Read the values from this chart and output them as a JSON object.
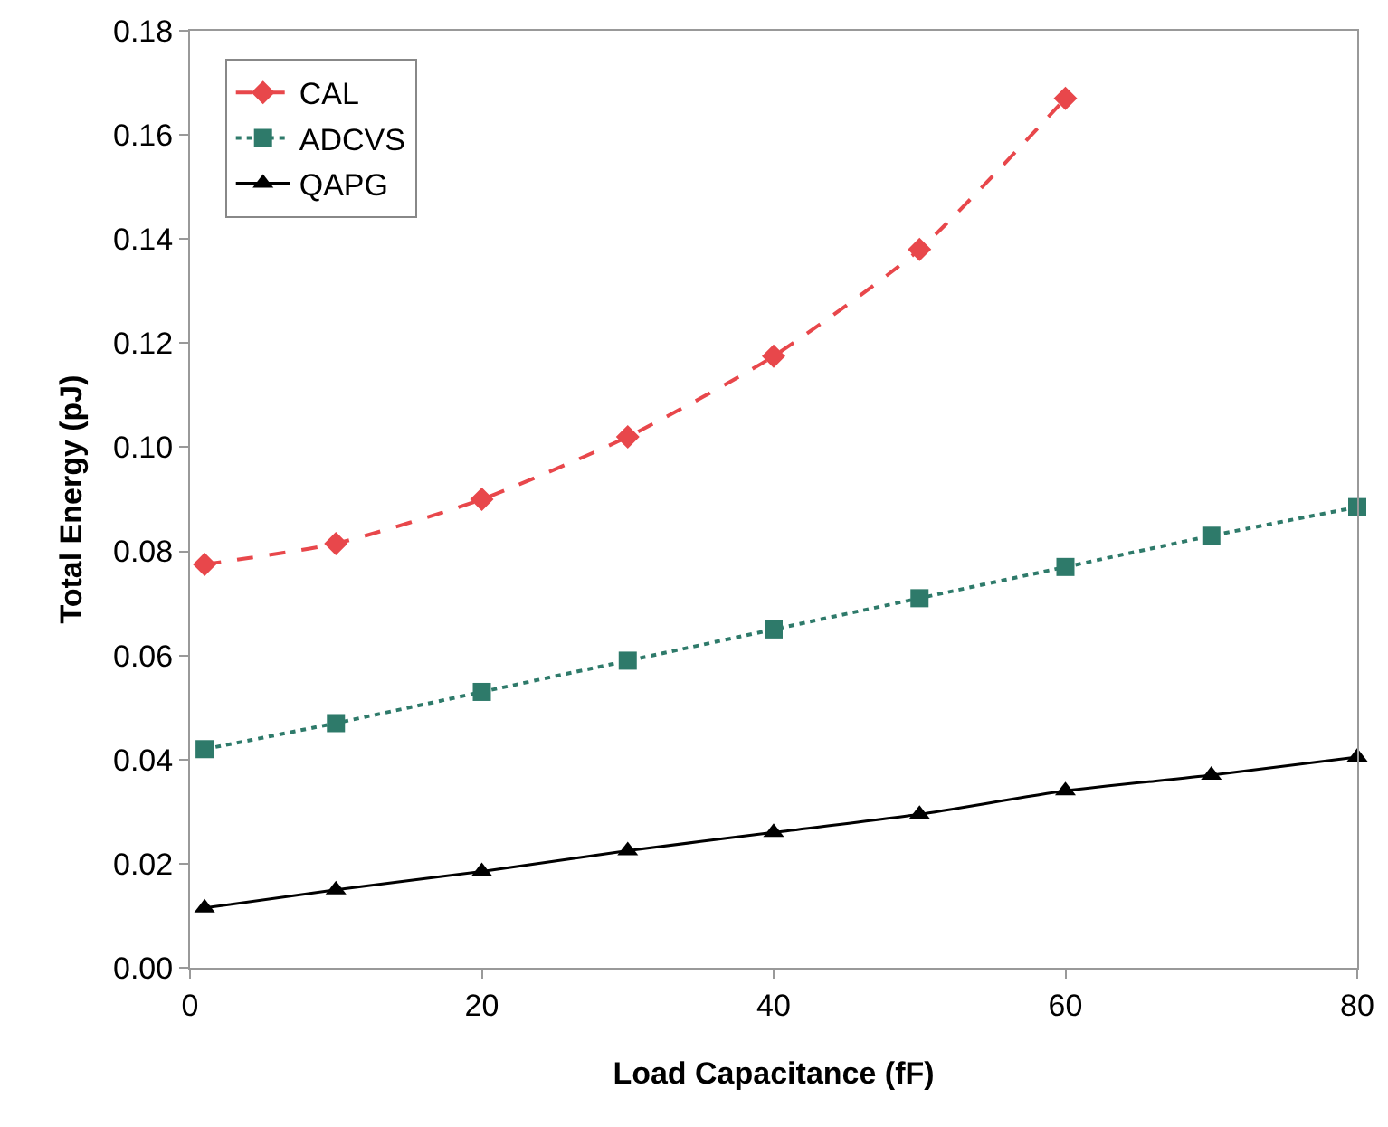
{
  "chart_data": {
    "type": "line",
    "xlabel": "Load Capacitance (fF)",
    "ylabel": "Total Energy (pJ)",
    "xlim": [
      0,
      80
    ],
    "xticks": [
      0,
      20,
      40,
      60,
      80
    ],
    "ylim": [
      0,
      0.18
    ],
    "yticks": [
      {
        "value": 0,
        "label": "0.00"
      },
      {
        "value": 0.02,
        "label": "0.02"
      },
      {
        "value": 0.04,
        "label": "0.04"
      },
      {
        "value": 0.06,
        "label": "0.06"
      },
      {
        "value": 0.08,
        "label": "0.08"
      },
      {
        "value": 0.1,
        "label": "0.10"
      },
      {
        "value": 0.12,
        "label": "0.12"
      },
      {
        "value": 0.14,
        "label": "0.14"
      },
      {
        "value": 0.16,
        "label": "0.16"
      },
      {
        "value": 0.18,
        "label": "0.18"
      }
    ],
    "grid": false,
    "legend": "top left",
    "series": [
      {
        "name": "CAL",
        "color": "#e8474b",
        "marker": "diamond",
        "line_style": "dashed",
        "x": [
          1,
          10,
          20,
          30,
          40,
          50,
          60
        ],
        "values": [
          0.0775,
          0.0815,
          0.09,
          0.102,
          0.1175,
          0.138,
          0.167
        ]
      },
      {
        "name": "ADCVS",
        "color": "#2e7a6a",
        "marker": "square",
        "line_style": "dotted",
        "x": [
          1,
          10,
          20,
          30,
          40,
          50,
          60,
          70,
          80
        ],
        "values": [
          0.042,
          0.047,
          0.053,
          0.059,
          0.065,
          0.071,
          0.077,
          0.083,
          0.0885
        ]
      },
      {
        "name": "QAPG",
        "color": "#000000",
        "marker": "triangle",
        "line_style": "solid",
        "x": [
          1,
          10,
          20,
          30,
          40,
          50,
          60,
          70,
          80
        ],
        "values": [
          0.0115,
          0.015,
          0.0185,
          0.0225,
          0.026,
          0.0295,
          0.034,
          0.037,
          0.0405
        ]
      }
    ]
  }
}
